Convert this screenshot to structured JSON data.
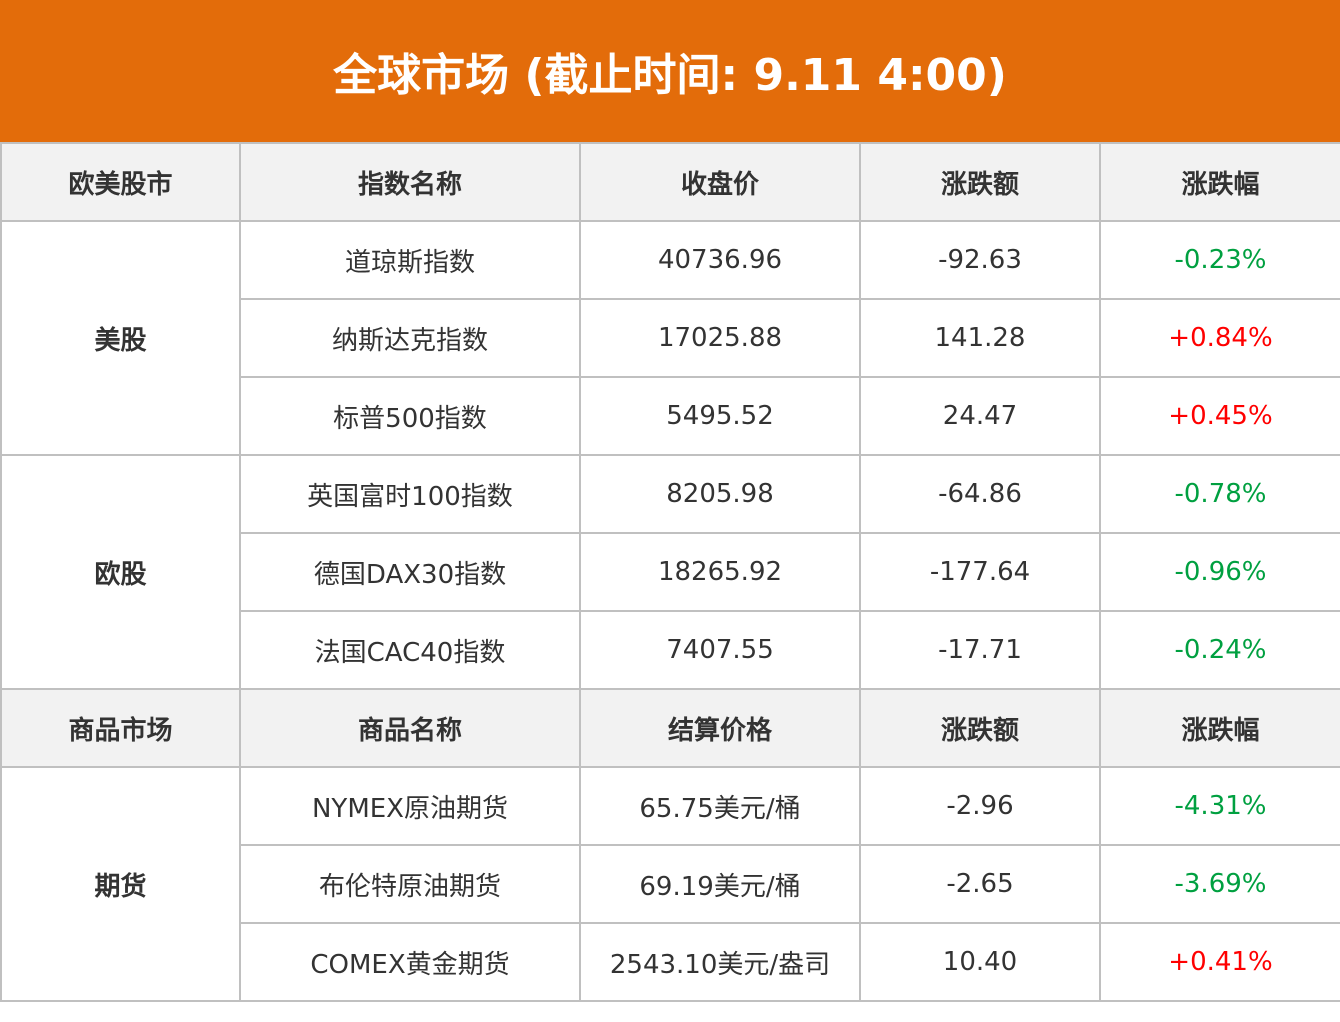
{
  "title": "全球市场 (截止时间: 9.11 4:00)",
  "colors": {
    "header": "#e36c0a",
    "up": "#ff0000",
    "down": "#00a040"
  },
  "stocks": {
    "headers": [
      "欧美股市",
      "指数名称",
      "收盘价",
      "涨跌额",
      "涨跌幅"
    ],
    "groups": [
      {
        "name": "美股",
        "rows": [
          {
            "name": "道琼斯指数",
            "price": "40736.96",
            "change": "-92.63",
            "pct": "-0.23%"
          },
          {
            "name": "纳斯达克指数",
            "price": "17025.88",
            "change": "141.28",
            "pct": "+0.84%"
          },
          {
            "name": "标普500指数",
            "price": "5495.52",
            "change": "24.47",
            "pct": "+0.45%"
          }
        ]
      },
      {
        "name": "欧股",
        "rows": [
          {
            "name": "英国富时100指数",
            "price": "8205.98",
            "change": "-64.86",
            "pct": "-0.78%"
          },
          {
            "name": "德国DAX30指数",
            "price": "18265.92",
            "change": "-177.64",
            "pct": "-0.96%"
          },
          {
            "name": "法国CAC40指数",
            "price": "7407.55",
            "change": "-17.71",
            "pct": "-0.24%"
          }
        ]
      }
    ]
  },
  "commodities": {
    "headers": [
      "商品市场",
      "商品名称",
      "结算价格",
      "涨跌额",
      "涨跌幅"
    ],
    "groups": [
      {
        "name": "期货",
        "rows": [
          {
            "name": "NYMEX原油期货",
            "price": "65.75美元/桶",
            "change": "-2.96",
            "pct": "-4.31%"
          },
          {
            "name": "布伦特原油期货",
            "price": "69.19美元/桶",
            "change": "-2.65",
            "pct": "-3.69%"
          },
          {
            "name": "COMEX黄金期货",
            "price": "2543.10美元/盎司",
            "change": "10.40",
            "pct": "+0.41%"
          }
        ]
      }
    ]
  }
}
